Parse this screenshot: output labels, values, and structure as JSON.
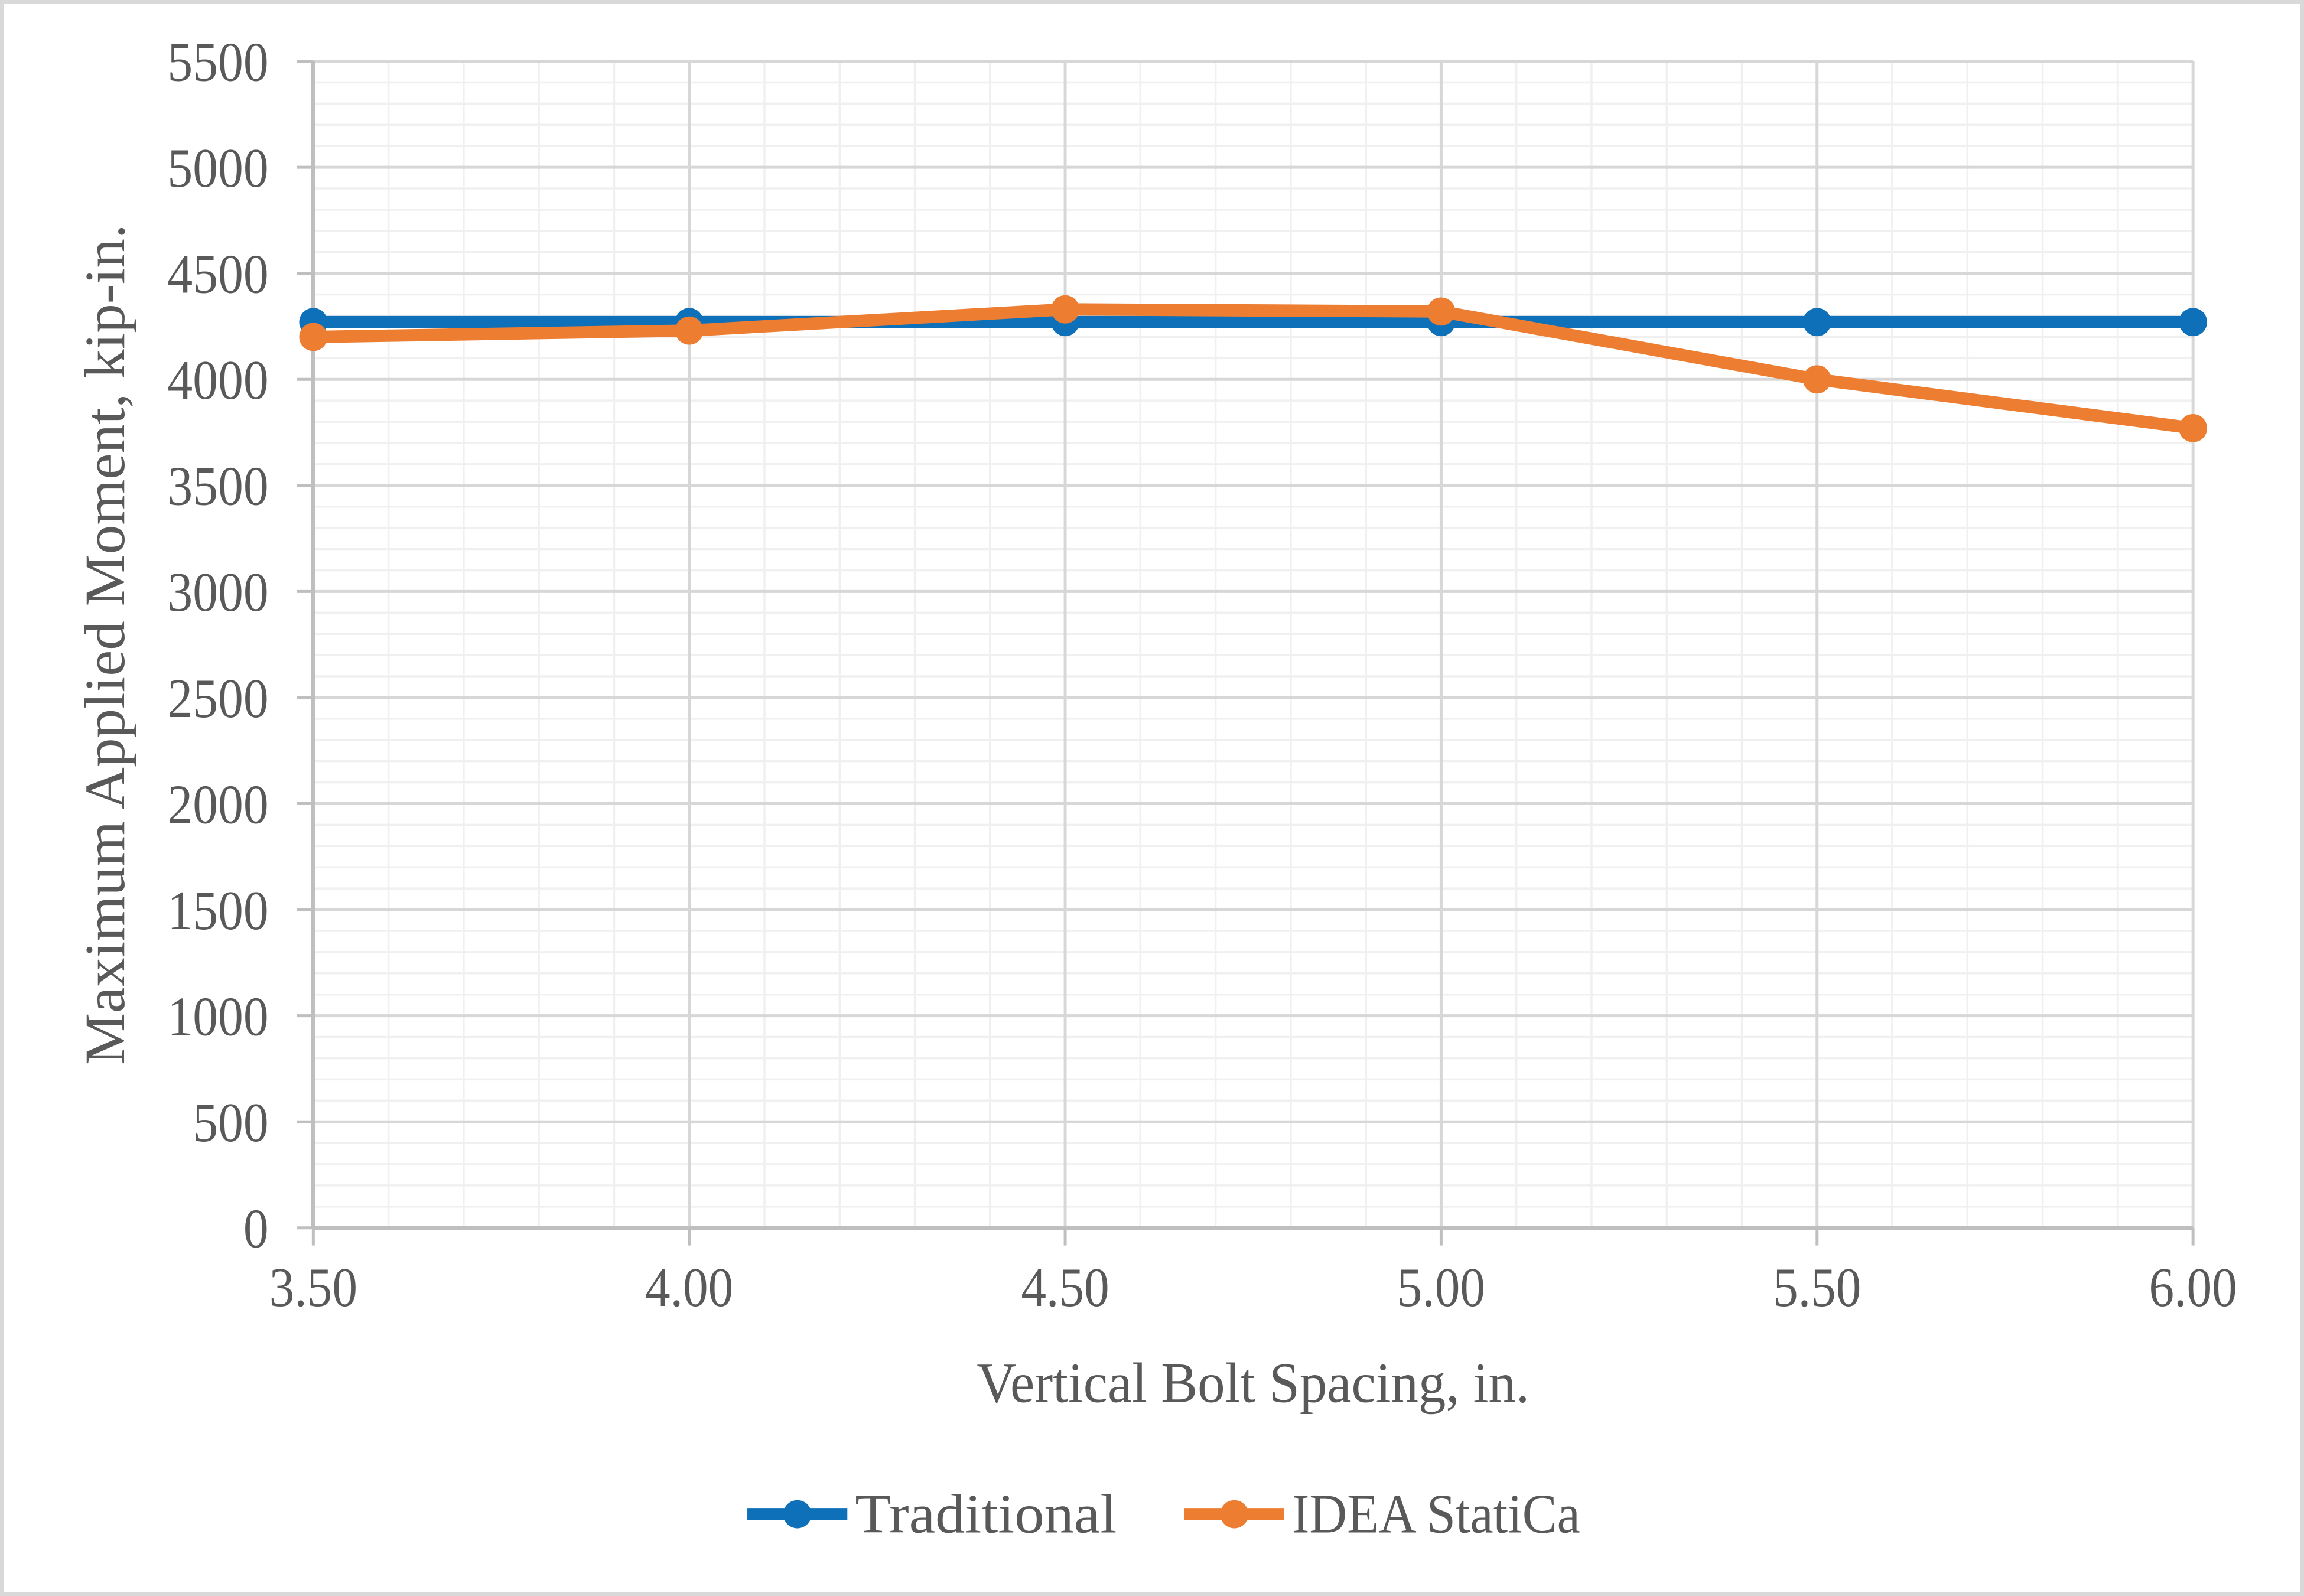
{
  "colors": {
    "background": "#FFFFFF",
    "frame_border": "#D9D9D9",
    "text": "#595959",
    "axis_line": "#BFBFBF",
    "major_gridline": "#D7D7D7",
    "minor_gridline": "#F0F0F0"
  },
  "chart_data": {
    "type": "line",
    "title": "",
    "xlabel": "Vertical Bolt Spacing, in.",
    "ylabel": "Maximum Applied Moment, kip-in.",
    "xlim": [
      3.5,
      6.0
    ],
    "ylim": [
      0,
      5500
    ],
    "x": [
      3.5,
      4.0,
      4.5,
      5.0,
      5.5,
      6.0
    ],
    "x_tick_labels": [
      "3.50",
      "4.00",
      "4.50",
      "5.00",
      "5.50",
      "6.00"
    ],
    "y_ticks": [
      0,
      500,
      1000,
      1500,
      2000,
      2500,
      3000,
      3500,
      4000,
      4500,
      5000,
      5500
    ],
    "y_tick_labels": [
      "0",
      "500",
      "1000",
      "1500",
      "2000",
      "2500",
      "3000",
      "3500",
      "4000",
      "4500",
      "5000",
      "5500"
    ],
    "x_minor_step": 0.1,
    "y_minor_step": 100,
    "grid": {
      "major": true,
      "minor": true
    },
    "legend_position": "bottom-center",
    "series": [
      {
        "name": "Traditional",
        "color": "#0E70B8",
        "marker": "circle",
        "values": [
          4270,
          4270,
          4270,
          4270,
          4270,
          4270
        ]
      },
      {
        "name": "IDEA StatiCa",
        "color": "#ED7D31",
        "marker": "circle",
        "values": [
          4200,
          4230,
          4330,
          4320,
          4000,
          3770
        ]
      }
    ]
  }
}
